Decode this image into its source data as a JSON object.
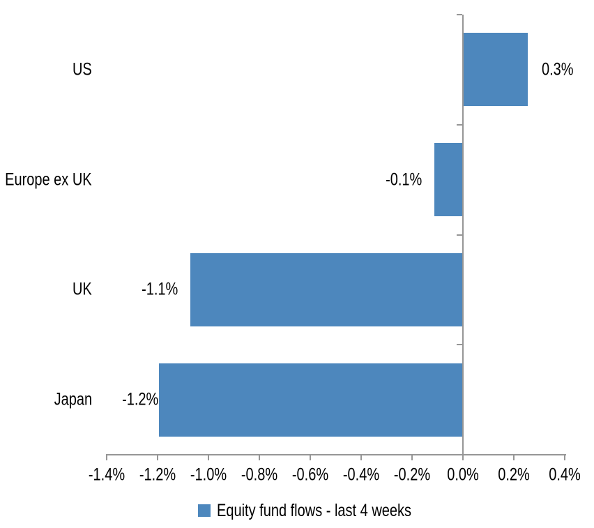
{
  "chart_data": {
    "type": "bar",
    "orientation": "horizontal",
    "title": "",
    "xlabel": "",
    "ylabel": "",
    "categories": [
      "US",
      "Europe ex UK",
      "UK",
      "Japan"
    ],
    "values": [
      0.3,
      -0.1,
      -1.1,
      -1.2
    ],
    "data_labels": [
      "0.3%",
      "-0.1%",
      "-1.1%",
      "-1.2%"
    ],
    "bar_values_unrounded_est": [
      0.255,
      -0.112,
      -1.07,
      -1.195
    ],
    "series_name": "Equity fund flows - last 4 weeks",
    "x_tick_labels": [
      "-1.4%",
      "-1.2%",
      "-1.0%",
      "-0.8%",
      "-0.6%",
      "-0.4%",
      "-0.2%",
      "0.0%",
      "0.2%",
      "0.4%"
    ],
    "xlim": [
      -1.4,
      0.4
    ],
    "x_tick_step": 0.2,
    "unit": "%",
    "grid": false,
    "legend_position": "bottom"
  },
  "legend": {
    "label": "Equity fund flows - last 4 weeks"
  },
  "colors": {
    "bar": "#4D87BD",
    "axis": "#969696",
    "text": "#000000",
    "background": "#FFFFFF"
  }
}
